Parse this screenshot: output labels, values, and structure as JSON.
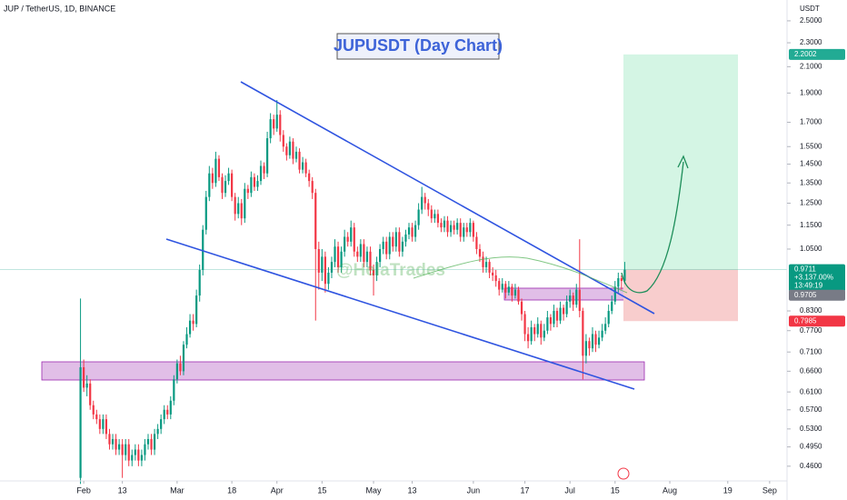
{
  "chart_data": {
    "type": "candlestick",
    "title": "JUPUSDT (Day Chart)",
    "header": "JUP / TetherUS, 1D, BINANCE",
    "watermark": "@HelaTrades",
    "currency": "USDT",
    "log_scale": true,
    "grid": false,
    "up_color": "#089981",
    "down_color": "#f23645",
    "xlim": [
      6,
      250.4
    ],
    "ylim": [
      0.4365,
      2.706
    ],
    "xticks": [
      {
        "value": 32,
        "label": "Feb"
      },
      {
        "value": 44,
        "label": "13"
      },
      {
        "value": 61,
        "label": "Mar"
      },
      {
        "value": 78,
        "label": "18"
      },
      {
        "value": 92,
        "label": "Apr"
      },
      {
        "value": 106,
        "label": "15"
      },
      {
        "value": 122,
        "label": "May"
      },
      {
        "value": 134,
        "label": "13"
      },
      {
        "value": 153,
        "label": "Jun"
      },
      {
        "value": 169,
        "label": "17"
      },
      {
        "value": 183,
        "label": "Jul"
      },
      {
        "value": 197,
        "label": "15"
      },
      {
        "value": 214,
        "label": "Aug"
      },
      {
        "value": 232,
        "label": "19"
      },
      {
        "value": 245,
        "label": "Sep"
      }
    ],
    "yticks": [
      {
        "value": 2.5,
        "label": "2.5000"
      },
      {
        "value": 2.3,
        "label": "2.3000"
      },
      {
        "value": 2.1,
        "label": "2.1000"
      },
      {
        "value": 1.9,
        "label": "1.9000"
      },
      {
        "value": 1.7,
        "label": "1.7000"
      },
      {
        "value": 1.55,
        "label": "1.5500"
      },
      {
        "value": 1.45,
        "label": "1.4500"
      },
      {
        "value": 1.35,
        "label": "1.3500"
      },
      {
        "value": 1.25,
        "label": "1.2500"
      },
      {
        "value": 1.15,
        "label": "1.1500"
      },
      {
        "value": 1.05,
        "label": "1.0500"
      },
      {
        "value": 0.83,
        "label": "0.8300"
      },
      {
        "value": 0.77,
        "label": "0.7700"
      },
      {
        "value": 0.71,
        "label": "0.7100"
      },
      {
        "value": 0.66,
        "label": "0.6600"
      },
      {
        "value": 0.61,
        "label": "0.6100"
      },
      {
        "value": 0.57,
        "label": "0.5700"
      },
      {
        "value": 0.53,
        "label": "0.5300"
      },
      {
        "value": 0.495,
        "label": "0.4950"
      },
      {
        "value": 0.46,
        "label": "0.4600"
      }
    ],
    "price_labels": {
      "target": 2.2002,
      "last": 0.9711,
      "change": "+3.137.00%",
      "countdown": "13:49:19",
      "entry": 0.9705,
      "stop": 0.7985
    },
    "x": [
      31,
      32,
      33,
      34,
      35,
      36,
      37,
      38,
      39,
      40,
      41,
      42,
      43,
      44,
      45,
      46,
      47,
      48,
      49,
      50,
      51,
      52,
      53,
      54,
      55,
      56,
      57,
      58,
      59,
      60,
      61,
      62,
      63,
      64,
      65,
      66,
      67,
      68,
      69,
      70,
      71,
      72,
      73,
      74,
      75,
      76,
      77,
      78,
      79,
      80,
      81,
      82,
      83,
      84,
      85,
      86,
      87,
      88,
      89,
      90,
      91,
      92,
      93,
      94,
      95,
      96,
      97,
      98,
      99,
      100,
      101,
      102,
      103,
      104,
      105,
      106,
      107,
      108,
      109,
      110,
      111,
      112,
      113,
      114,
      115,
      116,
      117,
      118,
      119,
      120,
      121,
      122,
      123,
      124,
      125,
      126,
      127,
      128,
      129,
      130,
      131,
      132,
      133,
      134,
      135,
      136,
      137,
      138,
      139,
      140,
      141,
      142,
      143,
      144,
      145,
      146,
      147,
      148,
      149,
      150,
      151,
      152,
      153,
      154,
      155,
      156,
      157,
      158,
      159,
      160,
      161,
      162,
      163,
      164,
      165,
      166,
      167,
      168,
      169,
      170,
      171,
      172,
      173,
      174,
      175,
      176,
      177,
      178,
      179,
      180,
      181,
      182,
      183,
      184,
      185,
      186,
      187,
      188,
      189,
      190,
      191,
      192,
      193,
      194,
      195,
      196,
      197,
      198,
      199,
      200
    ],
    "ohlc": [
      [
        0.44,
        0.87,
        0.43,
        0.67
      ],
      [
        0.67,
        0.69,
        0.61,
        0.62
      ],
      [
        0.62,
        0.65,
        0.6,
        0.63
      ],
      [
        0.63,
        0.64,
        0.57,
        0.58
      ],
      [
        0.58,
        0.59,
        0.55,
        0.56
      ],
      [
        0.56,
        0.57,
        0.54,
        0.55
      ],
      [
        0.55,
        0.56,
        0.52,
        0.53
      ],
      [
        0.53,
        0.56,
        0.52,
        0.55
      ],
      [
        0.55,
        0.56,
        0.51,
        0.52
      ],
      [
        0.52,
        0.53,
        0.49,
        0.5
      ],
      [
        0.5,
        0.52,
        0.49,
        0.51
      ],
      [
        0.51,
        0.52,
        0.48,
        0.49
      ],
      [
        0.49,
        0.51,
        0.48,
        0.5
      ],
      [
        0.5,
        0.51,
        0.44,
        0.48
      ],
      [
        0.48,
        0.51,
        0.47,
        0.5
      ],
      [
        0.5,
        0.51,
        0.46,
        0.47
      ],
      [
        0.47,
        0.49,
        0.46,
        0.48
      ],
      [
        0.48,
        0.5,
        0.47,
        0.49
      ],
      [
        0.49,
        0.5,
        0.46,
        0.47
      ],
      [
        0.47,
        0.49,
        0.46,
        0.48
      ],
      [
        0.48,
        0.51,
        0.47,
        0.5
      ],
      [
        0.5,
        0.52,
        0.49,
        0.51
      ],
      [
        0.51,
        0.52,
        0.48,
        0.49
      ],
      [
        0.49,
        0.53,
        0.48,
        0.52
      ],
      [
        0.52,
        0.54,
        0.51,
        0.53
      ],
      [
        0.53,
        0.56,
        0.52,
        0.55
      ],
      [
        0.55,
        0.58,
        0.54,
        0.57
      ],
      [
        0.57,
        0.58,
        0.55,
        0.56
      ],
      [
        0.56,
        0.6,
        0.55,
        0.59
      ],
      [
        0.59,
        0.65,
        0.58,
        0.64
      ],
      [
        0.64,
        0.69,
        0.63,
        0.68
      ],
      [
        0.68,
        0.7,
        0.65,
        0.66
      ],
      [
        0.66,
        0.74,
        0.65,
        0.73
      ],
      [
        0.73,
        0.78,
        0.72,
        0.76
      ],
      [
        0.76,
        0.82,
        0.75,
        0.8
      ],
      [
        0.8,
        0.82,
        0.77,
        0.79
      ],
      [
        0.79,
        0.9,
        0.78,
        0.88
      ],
      [
        0.88,
        0.99,
        0.86,
        0.97
      ],
      [
        0.97,
        1.15,
        0.95,
        1.13
      ],
      [
        1.13,
        1.31,
        1.11,
        1.28
      ],
      [
        1.28,
        1.44,
        1.26,
        1.4
      ],
      [
        1.4,
        1.43,
        1.32,
        1.35
      ],
      [
        1.35,
        1.52,
        1.33,
        1.48
      ],
      [
        1.48,
        1.5,
        1.36,
        1.38
      ],
      [
        1.38,
        1.4,
        1.27,
        1.3
      ],
      [
        1.3,
        1.39,
        1.28,
        1.36
      ],
      [
        1.36,
        1.43,
        1.34,
        1.4
      ],
      [
        1.4,
        1.42,
        1.26,
        1.28
      ],
      [
        1.28,
        1.3,
        1.17,
        1.2
      ],
      [
        1.2,
        1.28,
        1.18,
        1.25
      ],
      [
        1.25,
        1.27,
        1.15,
        1.18
      ],
      [
        1.18,
        1.35,
        1.16,
        1.32
      ],
      [
        1.32,
        1.34,
        1.27,
        1.3
      ],
      [
        1.3,
        1.41,
        1.28,
        1.38
      ],
      [
        1.38,
        1.4,
        1.31,
        1.33
      ],
      [
        1.33,
        1.39,
        1.31,
        1.36
      ],
      [
        1.36,
        1.47,
        1.34,
        1.44
      ],
      [
        1.44,
        1.46,
        1.37,
        1.4
      ],
      [
        1.4,
        1.64,
        1.38,
        1.6
      ],
      [
        1.6,
        1.76,
        1.57,
        1.72
      ],
      [
        1.72,
        1.75,
        1.62,
        1.66
      ],
      [
        1.66,
        1.85,
        1.64,
        1.75
      ],
      [
        1.75,
        1.78,
        1.58,
        1.62
      ],
      [
        1.62,
        1.65,
        1.52,
        1.55
      ],
      [
        1.55,
        1.57,
        1.47,
        1.5
      ],
      [
        1.5,
        1.61,
        1.48,
        1.58
      ],
      [
        1.58,
        1.6,
        1.45,
        1.48
      ],
      [
        1.48,
        1.55,
        1.46,
        1.52
      ],
      [
        1.52,
        1.54,
        1.4,
        1.42
      ],
      [
        1.42,
        1.49,
        1.4,
        1.46
      ],
      [
        1.46,
        1.48,
        1.38,
        1.4
      ],
      [
        1.4,
        1.42,
        1.33,
        1.36
      ],
      [
        1.36,
        1.38,
        1.27,
        1.3
      ],
      [
        1.3,
        1.32,
        0.8,
        1.05
      ],
      [
        1.05,
        1.08,
        0.9,
        0.96
      ],
      [
        0.96,
        1.05,
        0.93,
        1.02
      ],
      [
        1.02,
        1.04,
        0.89,
        0.92
      ],
      [
        0.92,
        0.98,
        0.9,
        0.96
      ],
      [
        0.96,
        1.02,
        0.94,
        1.0
      ],
      [
        1.0,
        1.09,
        0.98,
        1.06
      ],
      [
        1.06,
        1.08,
        0.96,
        0.98
      ],
      [
        0.98,
        1.06,
        0.96,
        1.04
      ],
      [
        1.04,
        1.13,
        1.02,
        1.1
      ],
      [
        1.1,
        1.12,
        1.06,
        1.08
      ],
      [
        1.08,
        1.17,
        1.06,
        1.14
      ],
      [
        1.14,
        1.16,
        1.02,
        1.04
      ],
      [
        1.04,
        1.06,
        1.0,
        1.02
      ],
      [
        1.02,
        1.09,
        1.0,
        1.07
      ],
      [
        1.07,
        1.09,
        0.98,
        1.0
      ],
      [
        1.0,
        1.06,
        0.98,
        1.04
      ],
      [
        1.04,
        1.06,
        0.95,
        0.97
      ],
      [
        0.97,
        0.99,
        0.88,
        0.95
      ],
      [
        0.95,
        1.02,
        0.93,
        1.0
      ],
      [
        1.0,
        1.07,
        0.98,
        1.05
      ],
      [
        1.05,
        1.1,
        1.03,
        1.08
      ],
      [
        1.08,
        1.1,
        1.01,
        1.03
      ],
      [
        1.03,
        1.12,
        1.01,
        1.1
      ],
      [
        1.1,
        1.12,
        1.04,
        1.06
      ],
      [
        1.06,
        1.14,
        1.04,
        1.12
      ],
      [
        1.12,
        1.14,
        1.02,
        1.04
      ],
      [
        1.04,
        1.1,
        1.02,
        1.08
      ],
      [
        1.08,
        1.13,
        1.06,
        1.11
      ],
      [
        1.11,
        1.16,
        1.09,
        1.14
      ],
      [
        1.14,
        1.16,
        1.08,
        1.1
      ],
      [
        1.1,
        1.17,
        1.08,
        1.15
      ],
      [
        1.15,
        1.25,
        1.13,
        1.22
      ],
      [
        1.22,
        1.33,
        1.2,
        1.28
      ],
      [
        1.28,
        1.3,
        1.22,
        1.25
      ],
      [
        1.25,
        1.27,
        1.19,
        1.22
      ],
      [
        1.22,
        1.24,
        1.16,
        1.18
      ],
      [
        1.18,
        1.22,
        1.16,
        1.2
      ],
      [
        1.2,
        1.22,
        1.14,
        1.16
      ],
      [
        1.16,
        1.18,
        1.12,
        1.14
      ],
      [
        1.14,
        1.19,
        1.12,
        1.17
      ],
      [
        1.17,
        1.19,
        1.1,
        1.12
      ],
      [
        1.12,
        1.17,
        1.1,
        1.15
      ],
      [
        1.15,
        1.17,
        1.11,
        1.13
      ],
      [
        1.13,
        1.18,
        1.11,
        1.16
      ],
      [
        1.16,
        1.18,
        1.08,
        1.1
      ],
      [
        1.1,
        1.16,
        1.08,
        1.14
      ],
      [
        1.14,
        1.16,
        1.1,
        1.12
      ],
      [
        1.12,
        1.18,
        1.1,
        1.16
      ],
      [
        1.16,
        1.17,
        1.08,
        1.1
      ],
      [
        1.1,
        1.12,
        1.03,
        1.05
      ],
      [
        1.05,
        1.07,
        1.0,
        1.02
      ],
      [
        1.02,
        1.04,
        0.96,
        0.98
      ],
      [
        0.98,
        1.02,
        0.96,
        1.0
      ],
      [
        1.0,
        1.01,
        0.94,
        0.96
      ],
      [
        0.96,
        0.98,
        0.93,
        0.95
      ],
      [
        0.95,
        0.97,
        0.91,
        0.93
      ],
      [
        0.93,
        0.94,
        0.88,
        0.9
      ],
      [
        0.9,
        0.94,
        0.89,
        0.92
      ],
      [
        0.92,
        0.93,
        0.87,
        0.89
      ],
      [
        0.89,
        0.93,
        0.88,
        0.91
      ],
      [
        0.91,
        0.92,
        0.86,
        0.88
      ],
      [
        0.88,
        0.92,
        0.87,
        0.9
      ],
      [
        0.9,
        0.91,
        0.85,
        0.86
      ],
      [
        0.86,
        0.87,
        0.8,
        0.82
      ],
      [
        0.82,
        0.83,
        0.74,
        0.76
      ],
      [
        0.76,
        0.78,
        0.72,
        0.74
      ],
      [
        0.74,
        0.8,
        0.73,
        0.78
      ],
      [
        0.78,
        0.79,
        0.74,
        0.76
      ],
      [
        0.76,
        0.81,
        0.75,
        0.79
      ],
      [
        0.79,
        0.8,
        0.73,
        0.75
      ],
      [
        0.75,
        0.79,
        0.74,
        0.77
      ],
      [
        0.77,
        0.83,
        0.76,
        0.81
      ],
      [
        0.81,
        0.82,
        0.77,
        0.79
      ],
      [
        0.79,
        0.85,
        0.78,
        0.83
      ],
      [
        0.83,
        0.84,
        0.78,
        0.8
      ],
      [
        0.8,
        0.86,
        0.79,
        0.84
      ],
      [
        0.84,
        0.85,
        0.8,
        0.82
      ],
      [
        0.82,
        0.88,
        0.81,
        0.86
      ],
      [
        0.86,
        0.9,
        0.84,
        0.88
      ],
      [
        0.88,
        0.89,
        0.83,
        0.85
      ],
      [
        0.85,
        0.92,
        0.84,
        0.9
      ],
      [
        0.9,
        1.09,
        0.81,
        0.83
      ],
      [
        0.83,
        0.84,
        0.64,
        0.7
      ],
      [
        0.7,
        0.76,
        0.68,
        0.74
      ],
      [
        0.74,
        0.75,
        0.7,
        0.72
      ],
      [
        0.72,
        0.78,
        0.71,
        0.76
      ],
      [
        0.76,
        0.77,
        0.71,
        0.73
      ],
      [
        0.73,
        0.77,
        0.72,
        0.75
      ],
      [
        0.75,
        0.79,
        0.74,
        0.77
      ],
      [
        0.77,
        0.81,
        0.76,
        0.79
      ],
      [
        0.79,
        0.85,
        0.78,
        0.83
      ],
      [
        0.83,
        0.88,
        0.82,
        0.86
      ],
      [
        0.86,
        0.93,
        0.85,
        0.91
      ],
      [
        0.91,
        0.96,
        0.89,
        0.94
      ],
      [
        0.94,
        0.95,
        0.9,
        0.93
      ],
      [
        0.93,
        1.0,
        0.92,
        0.971
      ]
    ]
  }
}
